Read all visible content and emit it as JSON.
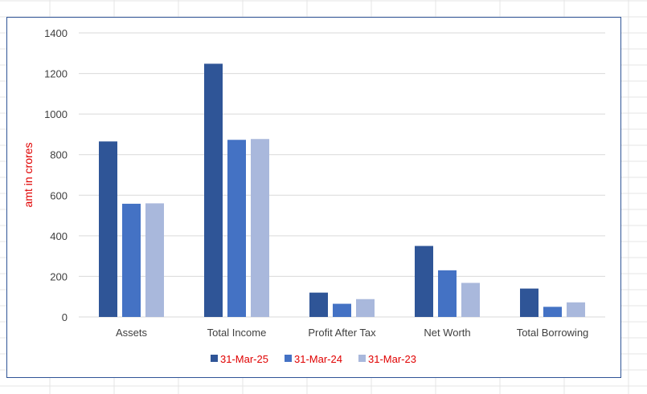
{
  "chart_data": {
    "type": "bar",
    "title": "",
    "xlabel": "",
    "ylabel": "amt in crores",
    "ylim": [
      0,
      1400
    ],
    "yticks": [
      0,
      200,
      400,
      600,
      800,
      1000,
      1200,
      1400
    ],
    "grid": true,
    "legend_position": "bottom",
    "categories": [
      "Assets",
      "Total Income",
      "Profit After Tax",
      "Net Worth",
      "Total Borrowing"
    ],
    "series": [
      {
        "name": "31-Mar-25",
        "color": "#2f5597",
        "values": [
          865,
          1248,
          120,
          350,
          140
        ]
      },
      {
        "name": "31-Mar-24",
        "color": "#4472c4",
        "values": [
          558,
          873,
          65,
          230,
          50
        ]
      },
      {
        "name": "31-Mar-23",
        "color": "#a9b8dc",
        "values": [
          560,
          877,
          88,
          168,
          72
        ]
      }
    ]
  },
  "colors": {
    "gridline": "#d9d9d9",
    "frame_border": "#2f5496",
    "axis_label": "#e00000",
    "legend_label": "#e00000",
    "tick_label": "#404040"
  }
}
